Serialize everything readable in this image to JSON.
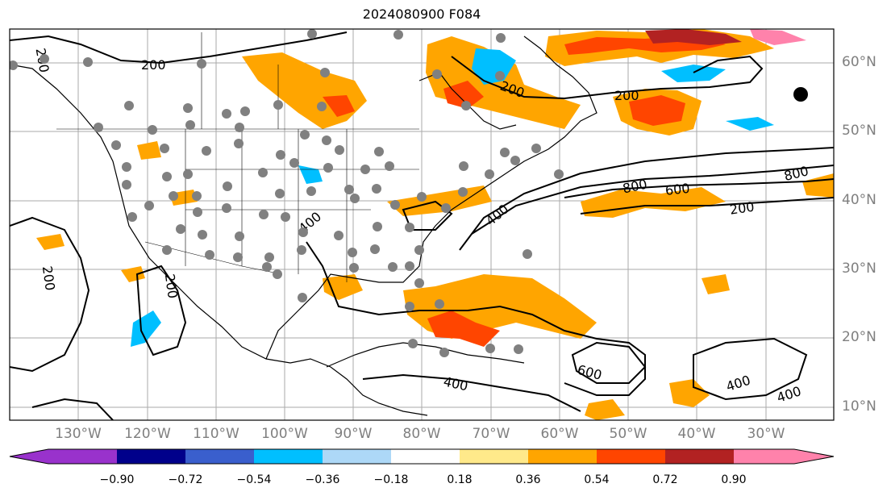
{
  "title": "2024080900 F084",
  "lat_labels": [
    "60°N",
    "50°N",
    "40°N",
    "30°N",
    "20°N",
    "10°N"
  ],
  "lon_labels": [
    "130°W",
    "120°W",
    "110°W",
    "100°W",
    "90°W",
    "80°W",
    "70°W",
    "60°W",
    "50°W",
    "40°W",
    "30°W"
  ],
  "contour_labels": [
    "200",
    "200",
    "200",
    "200",
    "200",
    "200",
    "200",
    "400",
    "400",
    "400",
    "400",
    "400",
    "600",
    "600",
    "800",
    "800"
  ],
  "colorbar": {
    "tick_labels": [
      "−0.90",
      "−0.72",
      "−0.54",
      "−0.36",
      "−0.18",
      "0.18",
      "0.36",
      "0.54",
      "0.72",
      "0.90"
    ],
    "colors": [
      "#9932cc",
      "#00008b",
      "#3a5fcd",
      "#00bfff",
      "#add8f7",
      "#ffffff",
      "#ffe98a",
      "#ffa500",
      "#ff4500",
      "#b22222",
      "#ff82ab"
    ]
  }
}
